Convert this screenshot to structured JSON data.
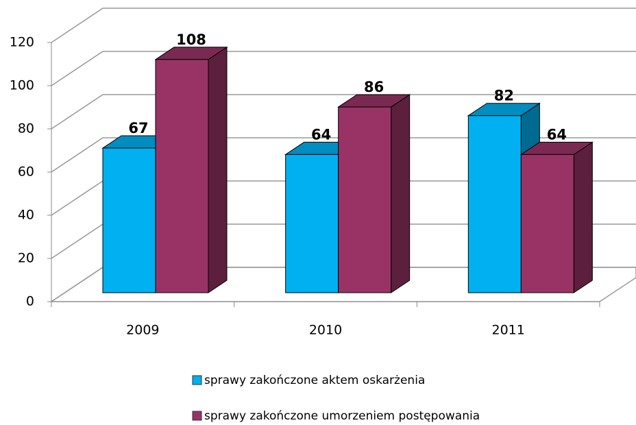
{
  "chart_data": {
    "type": "bar3d",
    "categories": [
      "2009",
      "2010",
      "2011"
    ],
    "series": [
      {
        "name": "sprawy zakończone aktem oskarżenia",
        "color": "#00b0f0",
        "values": [
          67,
          64,
          82
        ]
      },
      {
        "name": "sprawy zakończone umorzeniem postępowania",
        "color": "#993366",
        "values": [
          108,
          86,
          64
        ]
      }
    ],
    "ylim": [
      0,
      120
    ],
    "yticks": [
      0,
      20,
      40,
      60,
      80,
      100,
      120
    ],
    "grid": true,
    "legend": "bottom"
  }
}
